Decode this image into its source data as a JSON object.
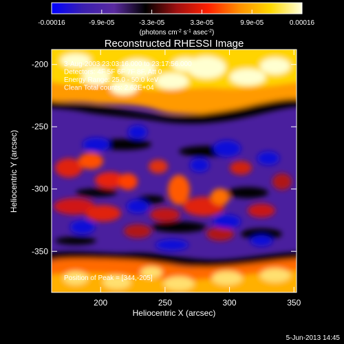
{
  "chart_data": {
    "type": "heatmap",
    "title": "Reconstructed RHESSI Image",
    "xlabel": "Heliocentric X (arcsec)",
    "ylabel": "Heliocentric Y (arcsec)",
    "xlim": [
      162,
      352
    ],
    "ylim": [
      -383,
      -188
    ],
    "x_ticks": [
      200,
      250,
      300,
      350
    ],
    "y_ticks": [
      -200,
      -250,
      -300,
      -350
    ],
    "colorbar": {
      "range": [
        -0.00016,
        0.00016
      ],
      "ticks": [
        "-0.00016",
        "-9.9e-05",
        "-3.3e-05",
        "3.3e-05",
        "9.9e-05",
        "0.00016"
      ],
      "unit_html": "(photons cm<tspan baseline-shift='super' font-size='7'>-2</tspan> s<tspan baseline-shift='super' font-size='7'>-1</tspan> asec<tspan baseline-shift='super' font-size='7'>-2</tspan>)",
      "colormap": [
        "#0000ff",
        "#3a1fb0",
        "#5a2aa0",
        "#000000",
        "#a01010",
        "#ff2000",
        "#ff9000",
        "#ffd800",
        "#ffffe0"
      ]
    },
    "annotations": [
      "3-Aug-2003 23:03:16.000 to 23:17:56.000",
      "Detectors: 4F 5F 6F 7F 8F, Att 0",
      "Energy Range: 25.0 - 50.0 keV",
      "Clean     Total counts: 2.62E+04"
    ],
    "peak_label": "Position of Peak = [344,-205]",
    "peak_position": [
      344,
      -205
    ]
  },
  "footer": {
    "date": "5-Jun-2013 14:45"
  }
}
